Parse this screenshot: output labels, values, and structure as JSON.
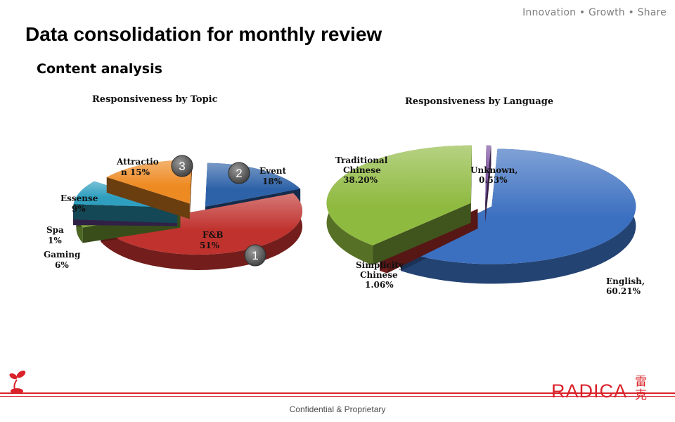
{
  "header": {
    "tagline": "Innovation • Growth • Share",
    "title": "Data consolidation for monthly review",
    "subtitle": "Content analysis"
  },
  "chart_data": [
    {
      "type": "pie",
      "title": "Responsiveness by Topic",
      "slices": [
        {
          "label_lines": [
            "Event",
            "18%"
          ],
          "value": 18,
          "color": "#2e62a8"
        },
        {
          "label_lines": [
            "F&B",
            "51%"
          ],
          "value": 51,
          "color": "#c0322e"
        },
        {
          "label_lines": [
            "Gaming",
            "6%"
          ],
          "value": 6,
          "color": "#7faa3c"
        },
        {
          "label_lines": [
            "Spa",
            "1%"
          ],
          "value": 1,
          "color": "#6a4a9a"
        },
        {
          "label_lines": [
            "Essense",
            "9%"
          ],
          "value": 9,
          "color": "#2f9fc0"
        },
        {
          "label_lines": [
            "Attractio",
            "n 15%"
          ],
          "value": 15,
          "color": "#ee8a22"
        }
      ],
      "badges": [
        "1",
        "2",
        "3"
      ]
    },
    {
      "type": "pie",
      "title": "Responsiveness by Language",
      "slices": [
        {
          "label_lines": [
            "English,",
            "60.21%"
          ],
          "value": 60.21,
          "color": "#3b6fc0"
        },
        {
          "label_lines": [
            "Simplicity",
            "Chinese",
            "1.06%"
          ],
          "value": 1.06,
          "color": "#c0322e"
        },
        {
          "label_lines": [
            "Traditional",
            "Chinese",
            "38.20%"
          ],
          "value": 38.2,
          "color": "#8fba40"
        },
        {
          "label_lines": [
            "Unknown,",
            "0.53%"
          ],
          "value": 0.53,
          "color": "#7a4f9e"
        }
      ]
    }
  ],
  "footer": {
    "text": "Confidential & Proprietary",
    "brand": "RADICA",
    "brand_cjk_top": "雷",
    "brand_cjk_bottom": "克",
    "accent": "#d9222a"
  }
}
